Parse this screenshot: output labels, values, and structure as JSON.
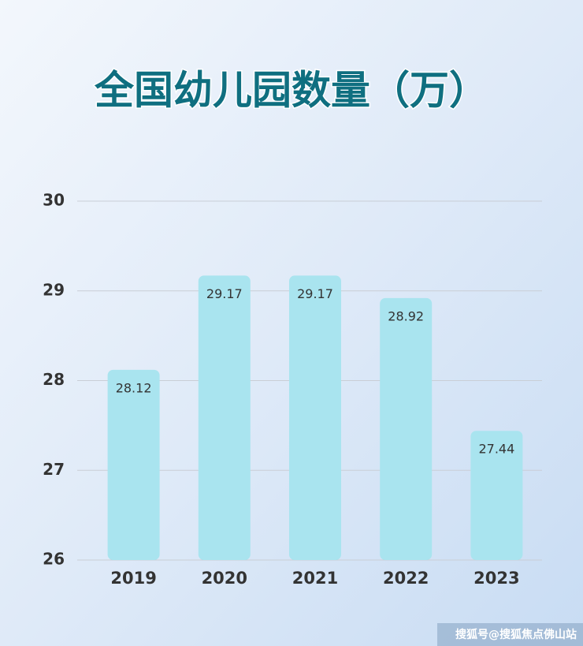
{
  "chart_data": {
    "type": "bar",
    "title": "全国幼儿园数量（万）",
    "categories": [
      "2019",
      "2020",
      "2021",
      "2022",
      "2023"
    ],
    "values": [
      28.12,
      29.17,
      29.17,
      28.92,
      27.44
    ],
    "value_labels": [
      "28.12",
      "29.17",
      "29.17",
      "28.92",
      "27.44"
    ],
    "color": "#a9e4ef",
    "ylim": [
      26,
      30
    ],
    "yticks": [
      26,
      27,
      28,
      29,
      30
    ],
    "grid": true,
    "credit": "搜狐号@搜狐焦点佛山站"
  }
}
